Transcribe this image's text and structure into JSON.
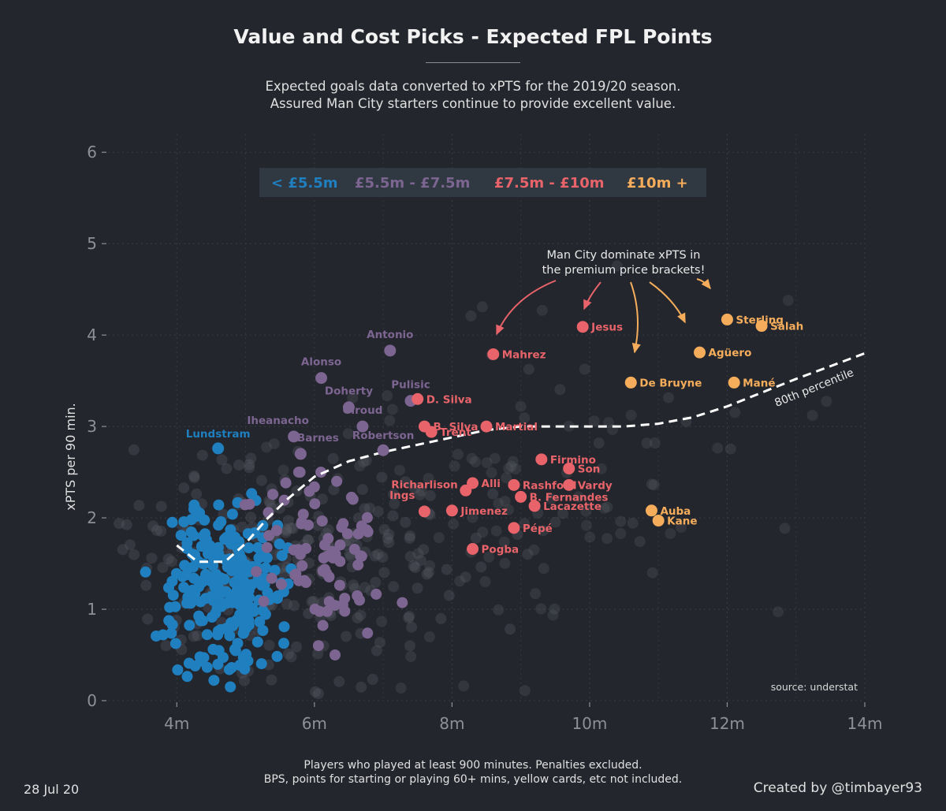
{
  "header": {
    "title": "Value and Cost Picks - Expected FPL Points",
    "subtitle_line1": "Expected goals data converted to xPTS for the 2019/20 season.",
    "subtitle_line2": "Assured Man City starters continue to provide excellent value."
  },
  "footer": {
    "note_line1": "Players who played at least 900 minutes. Penalties excluded.",
    "note_line2": "BPS, points for starting or playing 60+ mins, yellow cards, etc not included.",
    "date": "28 Jul 20",
    "credit": "Created by @timbayer93"
  },
  "chart_data": {
    "type": "scatter",
    "xlabel": "",
    "ylabel": "xPTS per 90 min.",
    "xlim": [
      3.0,
      14.0
    ],
    "ylim": [
      0,
      6.2
    ],
    "x_ticks": [
      {
        "v": 4,
        "label": "4m"
      },
      {
        "v": 6,
        "label": "6m"
      },
      {
        "v": 8,
        "label": "8m"
      },
      {
        "v": 10,
        "label": "10m"
      },
      {
        "v": 12,
        "label": "12m"
      },
      {
        "v": 14,
        "label": "14m"
      }
    ],
    "y_ticks": [
      {
        "v": 0,
        "label": "0"
      },
      {
        "v": 1,
        "label": "1"
      },
      {
        "v": 2,
        "label": "2"
      },
      {
        "v": 3,
        "label": "3"
      },
      {
        "v": 4,
        "label": "4"
      },
      {
        "v": 5,
        "label": "5"
      },
      {
        "v": 6,
        "label": "6"
      }
    ],
    "grid": true,
    "legend": {
      "placement": "top-center",
      "entries": [
        {
          "label": "< £5.5m",
          "color": "#1f7fbf"
        },
        {
          "label": "£5.5m - £7.5m",
          "color": "#7d6591"
        },
        {
          "label": "£7.5m - £10m",
          "color": "#e8646a"
        },
        {
          "label": "£10m +",
          "color": "#f5ad5b"
        }
      ]
    },
    "colors": {
      "low": "#1f7fbf",
      "mid": "#7d6591",
      "high": "#e8646a",
      "premium": "#f5ad5b",
      "other": "#4a4d53"
    },
    "labeled_players": [
      {
        "name": "Lundstram",
        "x": 4.6,
        "y": 2.76,
        "group": "low"
      },
      {
        "name": "Antonio",
        "x": 7.1,
        "y": 3.83,
        "group": "mid"
      },
      {
        "name": "Alonso",
        "x": 6.1,
        "y": 3.53,
        "group": "mid"
      },
      {
        "name": "Pulisic",
        "x": 7.4,
        "y": 3.28,
        "group": "mid"
      },
      {
        "name": "Doherty",
        "x": 6.5,
        "y": 3.21,
        "group": "mid"
      },
      {
        "name": "Giroud",
        "x": 6.7,
        "y": 3.0,
        "group": "mid"
      },
      {
        "name": "Iheanacho",
        "x": 5.7,
        "y": 2.89,
        "group": "mid"
      },
      {
        "name": "Barnes",
        "x": 5.8,
        "y": 2.7,
        "group": "mid"
      },
      {
        "name": "Robertson",
        "x": 7.0,
        "y": 2.74,
        "group": "mid"
      },
      {
        "name": "Jesus",
        "x": 9.9,
        "y": 4.09,
        "group": "high"
      },
      {
        "name": "Mahrez",
        "x": 8.6,
        "y": 3.79,
        "group": "high"
      },
      {
        "name": "D. Silva",
        "x": 7.5,
        "y": 3.3,
        "group": "high"
      },
      {
        "name": "B. Silva",
        "x": 7.6,
        "y": 3.0,
        "group": "high"
      },
      {
        "name": "Martial",
        "x": 8.5,
        "y": 3.0,
        "group": "high"
      },
      {
        "name": "Trent",
        "x": 7.7,
        "y": 2.94,
        "group": "high"
      },
      {
        "name": "Firmino",
        "x": 9.3,
        "y": 2.64,
        "group": "high"
      },
      {
        "name": "Son",
        "x": 9.7,
        "y": 2.54,
        "group": "high"
      },
      {
        "name": "Alli",
        "x": 8.3,
        "y": 2.38,
        "group": "high"
      },
      {
        "name": "Rashford",
        "x": 8.9,
        "y": 2.36,
        "group": "high"
      },
      {
        "name": "Vardy",
        "x": 9.7,
        "y": 2.36,
        "group": "high"
      },
      {
        "name": "Richarlison",
        "x": 8.2,
        "y": 2.3,
        "group": "high"
      },
      {
        "name": "B. Fernandes",
        "x": 9.0,
        "y": 2.23,
        "group": "high"
      },
      {
        "name": "Ings",
        "x": 7.6,
        "y": 2.07,
        "group": "high"
      },
      {
        "name": "Jimenez",
        "x": 8.0,
        "y": 2.08,
        "group": "high"
      },
      {
        "name": "Lacazette",
        "x": 9.2,
        "y": 2.13,
        "group": "high"
      },
      {
        "name": "Pépé",
        "x": 8.9,
        "y": 1.89,
        "group": "high"
      },
      {
        "name": "Pogba",
        "x": 8.3,
        "y": 1.66,
        "group": "high"
      },
      {
        "name": "Sterling",
        "x": 12.0,
        "y": 4.17,
        "group": "premium"
      },
      {
        "name": "Salah",
        "x": 12.5,
        "y": 4.1,
        "group": "premium"
      },
      {
        "name": "Agüero",
        "x": 11.6,
        "y": 3.81,
        "group": "premium"
      },
      {
        "name": "De Bruyne",
        "x": 10.6,
        "y": 3.48,
        "group": "premium"
      },
      {
        "name": "Mané",
        "x": 12.1,
        "y": 3.48,
        "group": "premium"
      },
      {
        "name": "Auba",
        "x": 10.9,
        "y": 2.08,
        "group": "premium"
      },
      {
        "name": "Kane",
        "x": 11.0,
        "y": 1.97,
        "group": "premium"
      }
    ],
    "percentile_line": {
      "label": "80th percentile",
      "x": [
        4.0,
        4.3,
        4.7,
        5.0,
        5.3,
        5.6,
        6.0,
        6.5,
        7.0,
        7.5,
        8.0,
        8.5,
        9.0,
        9.5,
        10.0,
        10.5,
        11.0,
        11.5,
        12.0,
        12.5,
        13.0,
        13.5,
        14.0
      ],
      "y": [
        1.7,
        1.52,
        1.52,
        1.72,
        1.98,
        2.2,
        2.45,
        2.62,
        2.72,
        2.8,
        2.88,
        2.96,
        3.0,
        3.0,
        3.0,
        3.0,
        3.03,
        3.1,
        3.22,
        3.37,
        3.52,
        3.66,
        3.8
      ]
    },
    "annotations": {
      "man_city_line1": "Man City dominate xPTS in",
      "man_city_line2": "the premium price brackets!",
      "source": "source: understat"
    }
  }
}
